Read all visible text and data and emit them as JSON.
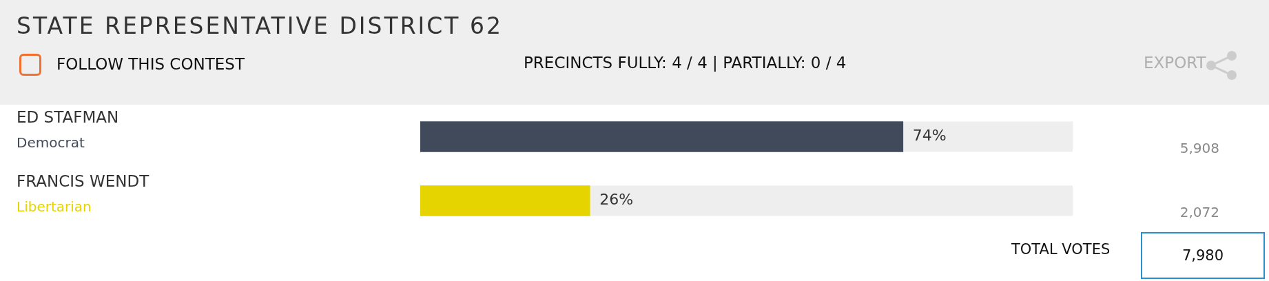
{
  "chart_data": {
    "type": "bar",
    "orientation": "horizontal",
    "title": "STATE REPRESENTATIVE DISTRICT 62",
    "categories": [
      "ED STAFMAN",
      "FRANCIS WENDT"
    ],
    "values": [
      74,
      26
    ],
    "colors": [
      "#414a5a",
      "#e6d400"
    ],
    "value_labels": [
      "74%",
      "26%"
    ],
    "xlim": [
      0,
      100
    ],
    "tick_labels": false,
    "legend": false,
    "annotations": [
      "FOLLOW THIS CONTEST",
      "PRECINCTS FULLY: 4 / 4 | PARTIALLY: 0 / 4",
      "EXPORT",
      "TOTAL VOTES",
      "7,980",
      "Democrat",
      "5,908",
      "Libertarian",
      "2,072"
    ]
  }
}
